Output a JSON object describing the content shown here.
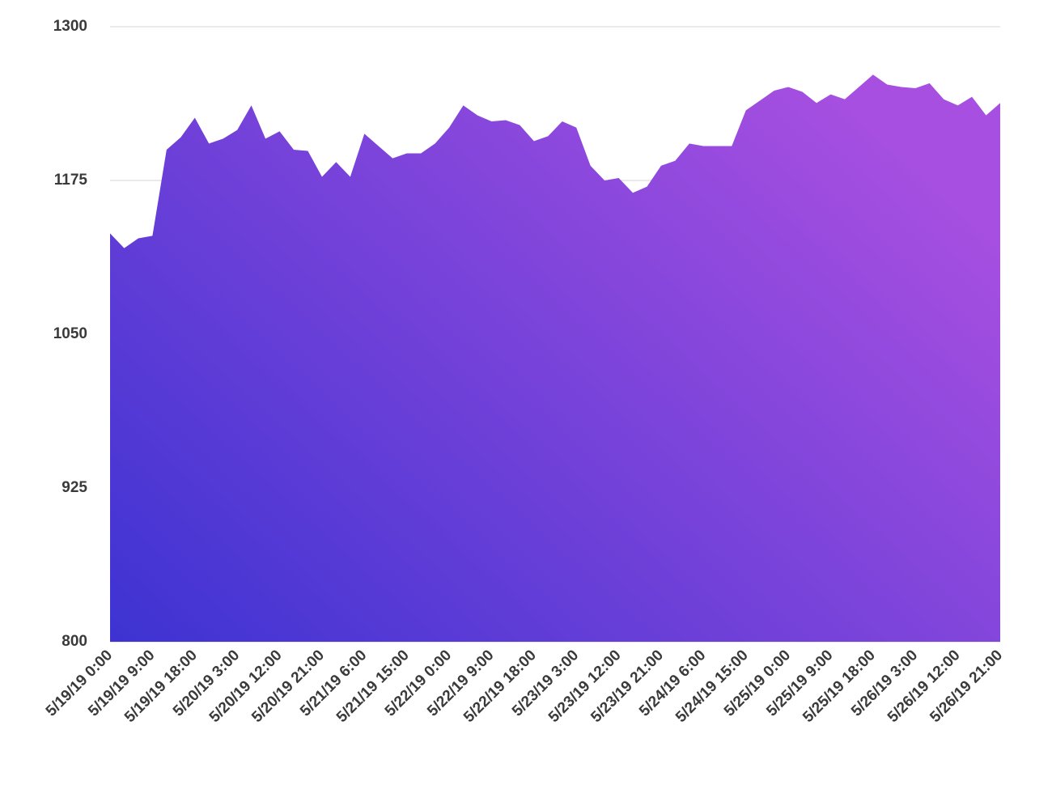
{
  "chart_data": {
    "type": "area",
    "categories": [
      "5/19/19 0:00",
      null,
      null,
      "5/19/19 9:00",
      null,
      null,
      "5/19/19 18:00",
      null,
      null,
      "5/20/19 3:00",
      null,
      null,
      "5/20/19 12:00",
      null,
      null,
      "5/20/19 21:00",
      null,
      null,
      "5/21/19 6:00",
      null,
      null,
      "5/21/19 15:00",
      null,
      null,
      "5/22/19 0:00",
      null,
      null,
      "5/22/19 9:00",
      null,
      null,
      "5/22/19 18:00",
      null,
      null,
      "5/23/19 3:00",
      null,
      null,
      "5/23/19 12:00",
      null,
      null,
      "5/23/19 21:00",
      null,
      null,
      "5/24/19 6:00",
      null,
      null,
      "5/24/19 15:00",
      null,
      null,
      "5/25/19 0:00",
      null,
      null,
      "5/25/19 9:00",
      null,
      null,
      "5/25/19 18:00",
      null,
      null,
      "5/26/19 3:00",
      null,
      null,
      "5/26/19 12:00",
      null,
      null,
      "5/26/19 21:00"
    ],
    "values": [
      1132,
      1120,
      1128,
      1130,
      1200,
      1210,
      1226,
      1205,
      1209,
      1216,
      1236,
      1209,
      1215,
      1200,
      1199,
      1178,
      1190,
      1178,
      1213,
      1203,
      1193,
      1197,
      1197,
      1205,
      1218,
      1236,
      1228,
      1223,
      1224,
      1220,
      1207,
      1211,
      1223,
      1218,
      1187,
      1175,
      1177,
      1165,
      1170,
      1187,
      1191,
      1205,
      1203,
      1203,
      1203,
      1232,
      1240,
      1248,
      1251,
      1247,
      1238,
      1245,
      1241,
      1251,
      1261,
      1253,
      1251,
      1250,
      1254,
      1241,
      1236,
      1243,
      1228,
      1238
    ],
    "color": [
      "#3d33d2",
      "#a64fe0"
    ],
    "ylim": [
      800,
      1300
    ],
    "yticks": [
      800,
      925,
      1050,
      1175,
      1300
    ],
    "grid": true
  }
}
